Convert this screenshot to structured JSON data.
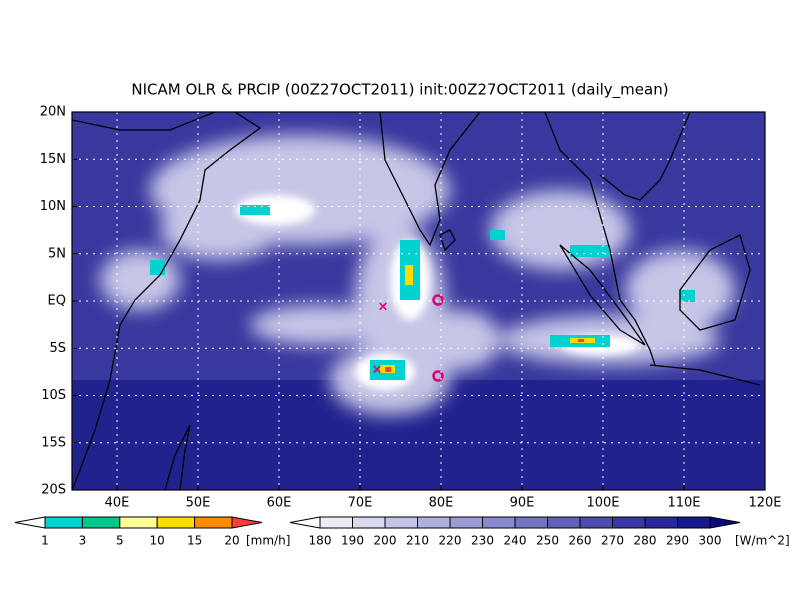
{
  "title": "NICAM OLR & PRCIP (00Z27OCT2011) init:00Z27OCT2011 (daily_mean)",
  "lat_labels": [
    "20N",
    "15N",
    "10N",
    "5N",
    "EQ",
    "5S",
    "10S",
    "15S",
    "20S"
  ],
  "lon_labels": [
    "40E",
    "50E",
    "60E",
    "70E",
    "80E",
    "90E",
    "100E",
    "110E",
    "120E"
  ],
  "precip_colorbar": {
    "labels": [
      "1",
      "3",
      "5",
      "10",
      "15",
      "20"
    ],
    "unit": "[mm/h]",
    "colors": [
      "#ffffff",
      "#00d2d2",
      "#00c88c",
      "#ffff96",
      "#ffdc00",
      "#ff8c00",
      "#ff3c3c"
    ]
  },
  "olr_colorbar": {
    "labels": [
      "180",
      "190",
      "200",
      "210",
      "220",
      "230",
      "240",
      "250",
      "260",
      "270",
      "280",
      "290",
      "300"
    ],
    "unit": "[W/m^2]",
    "colors": [
      "#ffffff",
      "#ececf6",
      "#d8d8ee",
      "#c4c4e6",
      "#b0b0dc",
      "#9c9cd4",
      "#8888cc",
      "#7474c2",
      "#6060b8",
      "#4c4cae",
      "#3838a4",
      "#28289a",
      "#18188e",
      "#0a0a80"
    ]
  }
}
